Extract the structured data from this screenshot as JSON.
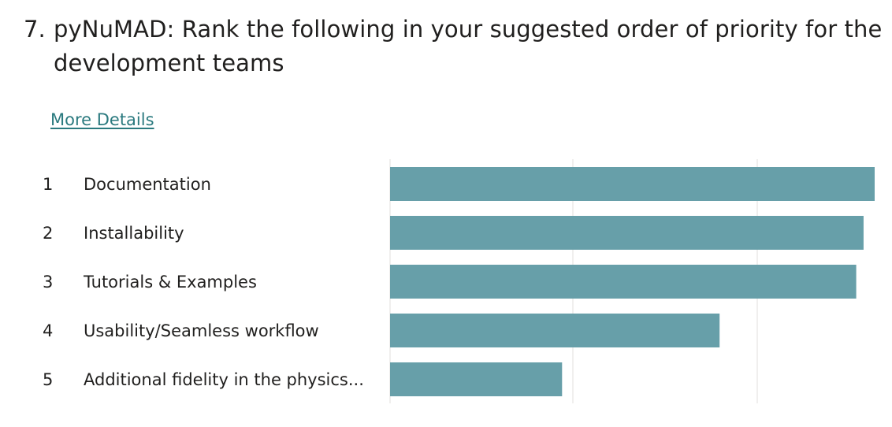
{
  "question": {
    "number": "7.",
    "text": "pyNuMAD: Rank the following in your suggested order of priority for the development teams"
  },
  "more_details_label": "More Details",
  "chart_data": {
    "type": "bar",
    "orientation": "horizontal",
    "categories": [
      "Documentation",
      "Installability",
      "Tutorials & Examples",
      "Usability/Seamless workflow",
      "Additional fidelity in the physics..."
    ],
    "ranks": [
      "1",
      "2",
      "3",
      "4",
      "5"
    ],
    "values": [
      1.0,
      0.977,
      0.962,
      0.68,
      0.355
    ],
    "xlim": [
      0,
      1
    ],
    "grid": true,
    "bar_color": "#679fa9",
    "grid_color": "#e1dfdd"
  }
}
